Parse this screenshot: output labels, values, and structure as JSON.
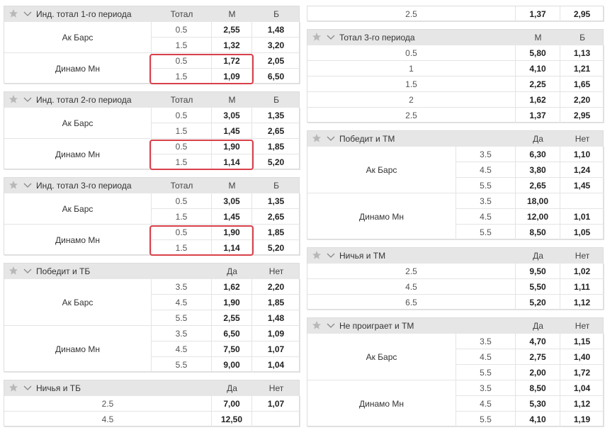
{
  "left": [
    {
      "title": "Инд. тотал 1-го периода",
      "headers": [
        "Тотал",
        "М",
        "Б"
      ],
      "groups": [
        {
          "team": "Ак Барс",
          "rows": [
            [
              "0.5",
              "2,55",
              "1,48"
            ],
            [
              "1.5",
              "1,32",
              "3,20"
            ]
          ]
        },
        {
          "team": "Динамо Мн",
          "highlighted": true,
          "rows": [
            [
              "0.5",
              "1,72",
              "2,05"
            ],
            [
              "1.5",
              "1,09",
              "6,50"
            ]
          ]
        }
      ]
    },
    {
      "title": "Инд. тотал 2-го периода",
      "headers": [
        "Тотал",
        "М",
        "Б"
      ],
      "groups": [
        {
          "team": "Ак Барс",
          "rows": [
            [
              "0.5",
              "3,05",
              "1,35"
            ],
            [
              "1.5",
              "1,45",
              "2,65"
            ]
          ]
        },
        {
          "team": "Динамо Мн",
          "highlighted": true,
          "rows": [
            [
              "0.5",
              "1,90",
              "1,85"
            ],
            [
              "1.5",
              "1,14",
              "5,20"
            ]
          ]
        }
      ]
    },
    {
      "title": "Инд. тотал 3-го периода",
      "headers": [
        "Тотал",
        "М",
        "Б"
      ],
      "groups": [
        {
          "team": "Ак Барс",
          "rows": [
            [
              "0.5",
              "3,05",
              "1,35"
            ],
            [
              "1.5",
              "1,45",
              "2,65"
            ]
          ]
        },
        {
          "team": "Динамо Мн",
          "highlighted": true,
          "rows": [
            [
              "0.5",
              "1,90",
              "1,85"
            ],
            [
              "1.5",
              "1,14",
              "5,20"
            ]
          ]
        }
      ]
    },
    {
      "title": "Победит и ТБ",
      "headers": [
        "Да",
        "Нет"
      ],
      "groups": [
        {
          "team": "Ак Барс",
          "rows": [
            [
              "3.5",
              "1,62",
              "2,20"
            ],
            [
              "4.5",
              "1,90",
              "1,85"
            ],
            [
              "5.5",
              "2,55",
              "1,48"
            ]
          ]
        },
        {
          "team": "Динамо Мн",
          "rows": [
            [
              "3.5",
              "6,50",
              "1,09"
            ],
            [
              "4.5",
              "7,50",
              "1,07"
            ],
            [
              "5.5",
              "9,00",
              "1,04"
            ]
          ]
        }
      ]
    },
    {
      "title": "Ничья и ТБ",
      "headers": [
        "Да",
        "Нет"
      ],
      "rows": [
        [
          "2.5",
          "7,00",
          "1,07"
        ],
        [
          "4.5",
          "12,50"
        ]
      ]
    }
  ],
  "right": [
    {
      "rows": [
        [
          "2.5",
          "1,37",
          "2,95"
        ]
      ]
    },
    {
      "title": "Тотал 3-го периода",
      "headers": [
        "М",
        "Б"
      ],
      "rows": [
        [
          "0.5",
          "5,80",
          "1,13"
        ],
        [
          "1",
          "4,10",
          "1,21"
        ],
        [
          "1.5",
          "2,25",
          "1,65"
        ],
        [
          "2",
          "1,62",
          "2,20"
        ],
        [
          "2.5",
          "1,37",
          "2,95"
        ]
      ]
    },
    {
      "title": "Победит и ТМ",
      "headers": [
        "Да",
        "Нет"
      ],
      "groups": [
        {
          "team": "Ак Барс",
          "rows": [
            [
              "3.5",
              "6,30",
              "1,10"
            ],
            [
              "4.5",
              "3,80",
              "1,24"
            ],
            [
              "5.5",
              "2,65",
              "1,45"
            ]
          ]
        },
        {
          "team": "Динамо Мн",
          "rows": [
            [
              "3.5",
              "18,00"
            ],
            [
              "4.5",
              "12,00",
              "1,01"
            ],
            [
              "5.5",
              "8,50",
              "1,05"
            ]
          ]
        }
      ]
    },
    {
      "title": "Ничья и ТМ",
      "headers": [
        "Да",
        "Нет"
      ],
      "rows": [
        [
          "2.5",
          "9,50",
          "1,02"
        ],
        [
          "4.5",
          "5,50",
          "1,11"
        ],
        [
          "6.5",
          "5,20",
          "1,12"
        ]
      ]
    },
    {
      "title": "Не проиграет и ТМ",
      "headers": [
        "Да",
        "Нет"
      ],
      "groups": [
        {
          "team": "Ак Барс",
          "rows": [
            [
              "3.5",
              "4,70",
              "1,15"
            ],
            [
              "4.5",
              "2,75",
              "1,40"
            ],
            [
              "5.5",
              "2,00",
              "1,72"
            ]
          ]
        },
        {
          "team": "Динамо Мн",
          "rows": [
            [
              "3.5",
              "8,50",
              "1,04"
            ],
            [
              "4.5",
              "5,30",
              "1,12"
            ],
            [
              "5.5",
              "4,10",
              "1,19"
            ]
          ]
        }
      ]
    }
  ]
}
